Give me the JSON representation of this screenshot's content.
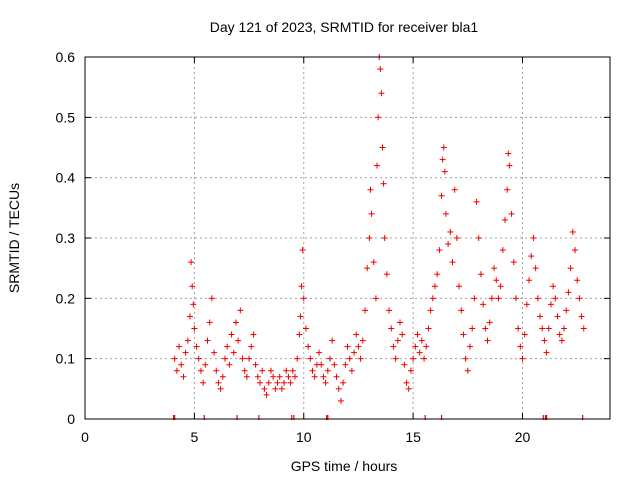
{
  "chart_data": {
    "type": "scatter",
    "title": "Day 121 of 2023, SRMTID for receiver bla1",
    "xlabel": "GPS time / hours",
    "ylabel": "SRMTID / TECUs",
    "xlim": [
      0,
      24
    ],
    "ylim": [
      0,
      0.6
    ],
    "x_ticks": [
      0,
      5,
      10,
      15,
      20
    ],
    "y_ticks": [
      0,
      0.1,
      0.2,
      0.3,
      0.4,
      0.5,
      0.6
    ],
    "x_tick_labels": [
      "0",
      "5",
      "10",
      "15",
      "20"
    ],
    "y_tick_labels": [
      "0",
      "0.1",
      "0.2",
      "0.3",
      "0.4",
      "0.5",
      "0.6"
    ],
    "grid": true,
    "marker": "plus",
    "color": "#ee0000",
    "series": [
      {
        "name": "SRMTID",
        "points": [
          [
            4.1,
            0.1
          ],
          [
            4.2,
            0.08
          ],
          [
            4.3,
            0.12
          ],
          [
            4.4,
            0.09
          ],
          [
            4.5,
            0.07
          ],
          [
            4.6,
            0.11
          ],
          [
            4.7,
            0.13
          ],
          [
            4.8,
            0.17
          ],
          [
            4.85,
            0.26
          ],
          [
            4.9,
            0.22
          ],
          [
            4.95,
            0.19
          ],
          [
            5.0,
            0.15
          ],
          [
            5.1,
            0.12
          ],
          [
            5.2,
            0.1
          ],
          [
            5.3,
            0.08
          ],
          [
            5.4,
            0.06
          ],
          [
            5.5,
            0.09
          ],
          [
            5.6,
            0.13
          ],
          [
            5.7,
            0.16
          ],
          [
            5.8,
            0.2
          ],
          [
            5.9,
            0.11
          ],
          [
            6.0,
            0.08
          ],
          [
            6.1,
            0.06
          ],
          [
            6.2,
            0.05
          ],
          [
            6.3,
            0.07
          ],
          [
            6.4,
            0.1
          ],
          [
            6.5,
            0.12
          ],
          [
            6.6,
            0.09
          ],
          [
            6.7,
            0.14
          ],
          [
            6.8,
            0.11
          ],
          [
            6.9,
            0.16
          ],
          [
            7.0,
            0.13
          ],
          [
            7.1,
            0.18
          ],
          [
            7.2,
            0.1
          ],
          [
            7.3,
            0.08
          ],
          [
            7.4,
            0.07
          ],
          [
            7.5,
            0.1
          ],
          [
            7.6,
            0.12
          ],
          [
            7.7,
            0.14
          ],
          [
            7.8,
            0.09
          ],
          [
            7.9,
            0.07
          ],
          [
            8.0,
            0.06
          ],
          [
            8.1,
            0.08
          ],
          [
            8.2,
            0.05
          ],
          [
            8.3,
            0.04
          ],
          [
            8.4,
            0.06
          ],
          [
            8.5,
            0.08
          ],
          [
            8.6,
            0.07
          ],
          [
            8.7,
            0.05
          ],
          [
            8.8,
            0.06
          ],
          [
            8.9,
            0.07
          ],
          [
            9.0,
            0.05
          ],
          [
            9.1,
            0.06
          ],
          [
            9.2,
            0.08
          ],
          [
            9.3,
            0.07
          ],
          [
            9.4,
            0.06
          ],
          [
            9.5,
            0.08
          ],
          [
            9.6,
            0.07
          ],
          [
            9.7,
            0.1
          ],
          [
            9.8,
            0.14
          ],
          [
            9.85,
            0.17
          ],
          [
            9.9,
            0.22
          ],
          [
            9.95,
            0.28
          ],
          [
            10.0,
            0.2
          ],
          [
            10.1,
            0.15
          ],
          [
            10.2,
            0.12
          ],
          [
            10.3,
            0.1
          ],
          [
            10.4,
            0.08
          ],
          [
            10.5,
            0.07
          ],
          [
            10.6,
            0.09
          ],
          [
            10.7,
            0.11
          ],
          [
            10.8,
            0.09
          ],
          [
            10.9,
            0.07
          ],
          [
            11.0,
            0.06
          ],
          [
            11.1,
            0.08
          ],
          [
            11.2,
            0.1
          ],
          [
            11.3,
            0.13
          ],
          [
            11.4,
            0.09
          ],
          [
            11.5,
            0.07
          ],
          [
            11.6,
            0.05
          ],
          [
            11.7,
            0.03
          ],
          [
            11.8,
            0.06
          ],
          [
            11.9,
            0.09
          ],
          [
            12.0,
            0.12
          ],
          [
            12.1,
            0.1
          ],
          [
            12.2,
            0.08
          ],
          [
            12.3,
            0.11
          ],
          [
            12.4,
            0.14
          ],
          [
            12.5,
            0.12
          ],
          [
            12.6,
            0.1
          ],
          [
            12.7,
            0.13
          ],
          [
            12.8,
            0.18
          ],
          [
            12.9,
            0.25
          ],
          [
            13.0,
            0.3
          ],
          [
            13.05,
            0.38
          ],
          [
            13.1,
            0.34
          ],
          [
            13.2,
            0.26
          ],
          [
            13.3,
            0.2
          ],
          [
            13.35,
            0.42
          ],
          [
            13.4,
            0.5
          ],
          [
            13.45,
            0.6
          ],
          [
            13.5,
            0.58
          ],
          [
            13.55,
            0.54
          ],
          [
            13.6,
            0.45
          ],
          [
            13.65,
            0.39
          ],
          [
            13.7,
            0.3
          ],
          [
            13.8,
            0.24
          ],
          [
            13.9,
            0.18
          ],
          [
            14.0,
            0.15
          ],
          [
            14.1,
            0.12
          ],
          [
            14.2,
            0.1
          ],
          [
            14.3,
            0.13
          ],
          [
            14.4,
            0.16
          ],
          [
            14.5,
            0.14
          ],
          [
            14.6,
            0.09
          ],
          [
            14.7,
            0.06
          ],
          [
            14.8,
            0.05
          ],
          [
            14.9,
            0.08
          ],
          [
            15.0,
            0.1
          ],
          [
            15.1,
            0.12
          ],
          [
            15.2,
            0.14
          ],
          [
            15.3,
            0.11
          ],
          [
            15.4,
            0.13
          ],
          [
            15.5,
            0.1
          ],
          [
            15.6,
            0.12
          ],
          [
            15.7,
            0.15
          ],
          [
            15.8,
            0.18
          ],
          [
            15.9,
            0.2
          ],
          [
            16.0,
            0.22
          ],
          [
            16.1,
            0.24
          ],
          [
            16.2,
            0.28
          ],
          [
            16.3,
            0.37
          ],
          [
            16.35,
            0.43
          ],
          [
            16.4,
            0.45
          ],
          [
            16.45,
            0.41
          ],
          [
            16.5,
            0.34
          ],
          [
            16.6,
            0.29
          ],
          [
            16.7,
            0.31
          ],
          [
            16.8,
            0.26
          ],
          [
            16.9,
            0.38
          ],
          [
            17.0,
            0.3
          ],
          [
            17.1,
            0.22
          ],
          [
            17.2,
            0.18
          ],
          [
            17.3,
            0.14
          ],
          [
            17.4,
            0.1
          ],
          [
            17.5,
            0.08
          ],
          [
            17.6,
            0.12
          ],
          [
            17.7,
            0.15
          ],
          [
            17.8,
            0.2
          ],
          [
            17.9,
            0.36
          ],
          [
            18.0,
            0.3
          ],
          [
            18.1,
            0.24
          ],
          [
            18.2,
            0.19
          ],
          [
            18.3,
            0.15
          ],
          [
            18.4,
            0.13
          ],
          [
            18.5,
            0.16
          ],
          [
            18.6,
            0.2
          ],
          [
            18.7,
            0.25
          ],
          [
            18.8,
            0.23
          ],
          [
            18.9,
            0.2
          ],
          [
            19.0,
            0.22
          ],
          [
            19.1,
            0.28
          ],
          [
            19.2,
            0.33
          ],
          [
            19.3,
            0.38
          ],
          [
            19.35,
            0.44
          ],
          [
            19.4,
            0.42
          ],
          [
            19.5,
            0.34
          ],
          [
            19.6,
            0.26
          ],
          [
            19.7,
            0.2
          ],
          [
            19.8,
            0.15
          ],
          [
            19.9,
            0.12
          ],
          [
            20.0,
            0.1
          ],
          [
            20.1,
            0.14
          ],
          [
            20.2,
            0.19
          ],
          [
            20.3,
            0.23
          ],
          [
            20.4,
            0.27
          ],
          [
            20.5,
            0.3
          ],
          [
            20.6,
            0.25
          ],
          [
            20.7,
            0.2
          ],
          [
            20.8,
            0.17
          ],
          [
            20.9,
            0.15
          ],
          [
            21.0,
            0.13
          ],
          [
            21.1,
            0.11
          ],
          [
            21.2,
            0.15
          ],
          [
            21.3,
            0.19
          ],
          [
            21.4,
            0.22
          ],
          [
            21.5,
            0.2
          ],
          [
            21.6,
            0.17
          ],
          [
            21.7,
            0.14
          ],
          [
            21.8,
            0.13
          ],
          [
            21.9,
            0.15
          ],
          [
            22.0,
            0.18
          ],
          [
            22.1,
            0.21
          ],
          [
            22.2,
            0.25
          ],
          [
            22.3,
            0.31
          ],
          [
            22.4,
            0.28
          ],
          [
            22.5,
            0.23
          ],
          [
            22.6,
            0.2
          ],
          [
            22.7,
            0.17
          ],
          [
            22.8,
            0.15
          ]
        ]
      }
    ],
    "data_gap_markers_x": [
      4.05,
      4.1,
      5.45,
      6.95,
      7.95,
      9.45,
      9.55,
      11.05,
      11.1,
      15.55,
      16.3,
      20.95,
      21.05,
      21.1,
      22.75
    ]
  }
}
